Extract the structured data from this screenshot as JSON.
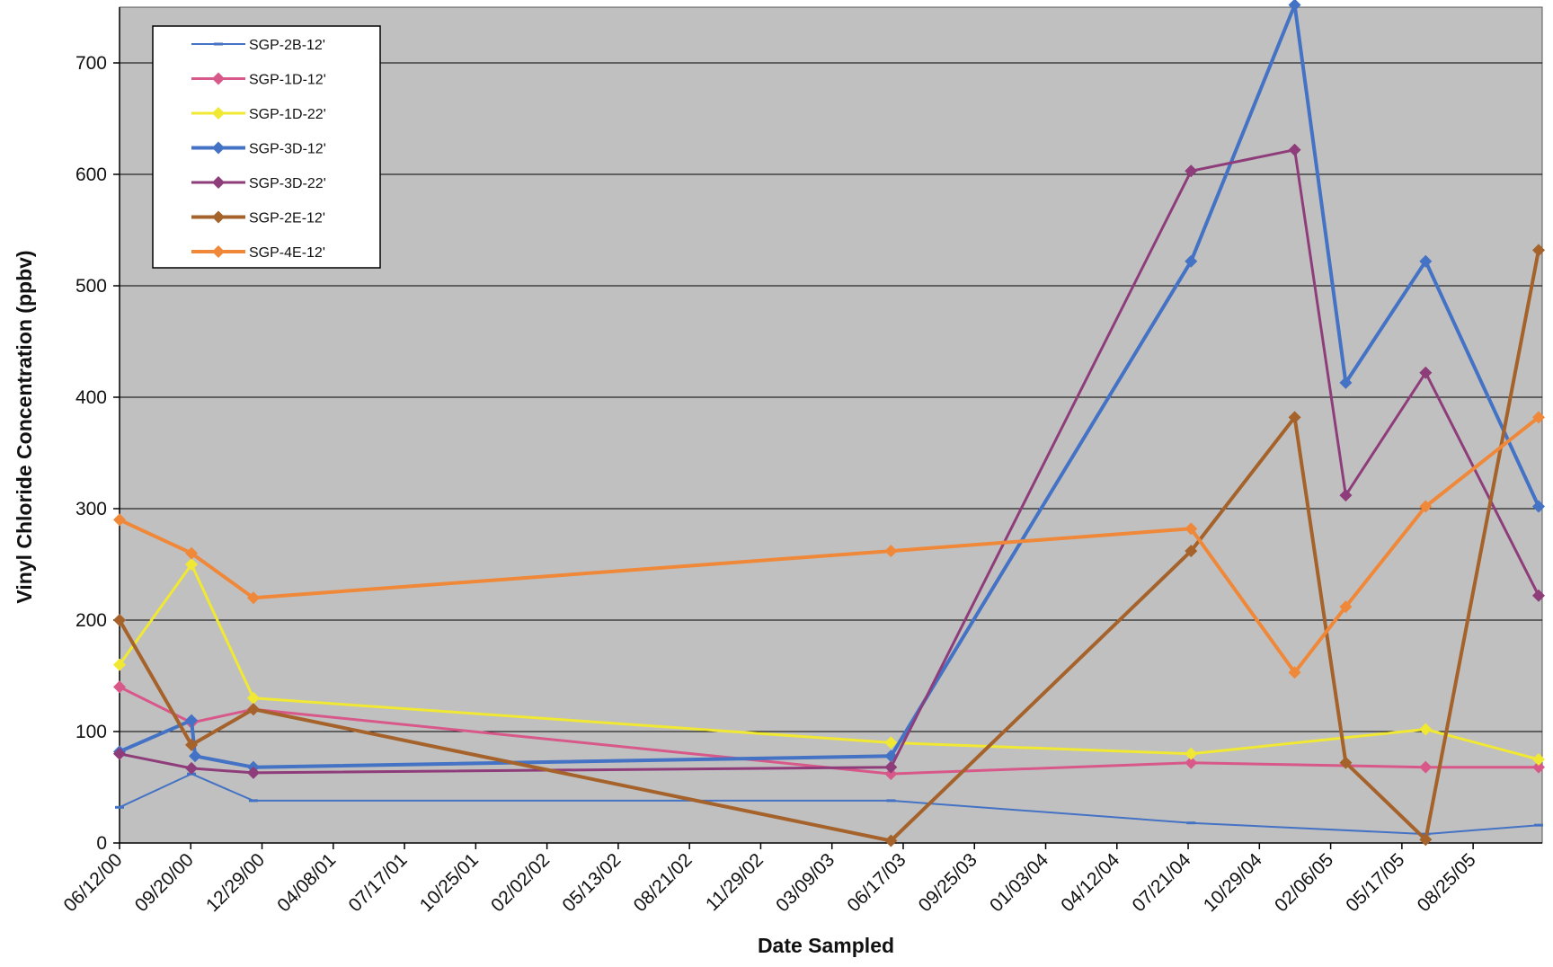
{
  "chart_data": {
    "type": "line",
    "title": "",
    "xlabel": "Date Sampled",
    "ylabel": "Vinyl Chloride Concentration (ppbv)",
    "ylim": [
      0,
      750
    ],
    "yticks": [
      0,
      100,
      200,
      300,
      400,
      500,
      600,
      700
    ],
    "x_tick_labels": [
      "06/12/00",
      "09/20/00",
      "12/29/00",
      "04/08/01",
      "07/17/01",
      "10/25/01",
      "02/02/02",
      "05/13/02",
      "08/21/02",
      "11/29/02",
      "03/09/03",
      "06/17/03",
      "09/25/03",
      "01/03/04",
      "04/12/04",
      "07/21/04",
      "10/29/04",
      "02/06/05",
      "05/17/05",
      "08/25/05"
    ],
    "xlim": [
      "2000-06-12",
      "2005-11-10"
    ],
    "grid": "horizontal",
    "background": "#c0c0c0",
    "legend_position": "top-left",
    "series": [
      {
        "name": "SGP-2B-12'",
        "color": "#4472c4",
        "width": 2,
        "marker": "dash",
        "points": [
          [
            "2000-06-12",
            32
          ],
          [
            "2000-09-20",
            62
          ],
          [
            "2000-12-15",
            38
          ],
          [
            "2003-05-20",
            38
          ],
          [
            "2004-07-10",
            18
          ],
          [
            "2005-06-01",
            8
          ],
          [
            "2005-11-05",
            16
          ]
        ]
      },
      {
        "name": "SGP-1D-12'",
        "color": "#d9588a",
        "width": 3,
        "marker": "diamond",
        "points": [
          [
            "2000-06-12",
            140
          ],
          [
            "2000-09-20",
            108
          ],
          [
            "2000-12-15",
            120
          ],
          [
            "2003-05-20",
            62
          ],
          [
            "2004-07-10",
            72
          ],
          [
            "2005-06-01",
            68
          ],
          [
            "2005-11-05",
            68
          ]
        ]
      },
      {
        "name": "SGP-1D-22'",
        "color": "#f0e832",
        "width": 3,
        "marker": "diamond",
        "points": [
          [
            "2000-06-12",
            160
          ],
          [
            "2000-09-20",
            250
          ],
          [
            "2000-12-15",
            130
          ],
          [
            "2003-05-20",
            90
          ],
          [
            "2004-07-10",
            80
          ],
          [
            "2005-06-01",
            102
          ],
          [
            "2005-11-05",
            75
          ]
        ]
      },
      {
        "name": "SGP-3D-12'",
        "color": "#4472c4",
        "width": 4,
        "marker": "diamond",
        "points": [
          [
            "2000-06-12",
            82
          ],
          [
            "2000-09-20",
            110
          ],
          [
            "2000-09-25",
            78
          ],
          [
            "2000-12-15",
            68
          ],
          [
            "2003-05-20",
            78
          ],
          [
            "2004-07-10",
            522
          ],
          [
            "2004-12-01",
            752
          ],
          [
            "2005-02-10",
            413
          ],
          [
            "2005-06-01",
            522
          ],
          [
            "2005-11-05",
            302
          ]
        ]
      },
      {
        "name": "SGP-3D-22'",
        "color": "#8e3d7a",
        "width": 3,
        "marker": "diamond",
        "points": [
          [
            "2000-06-12",
            80
          ],
          [
            "2000-09-20",
            67
          ],
          [
            "2000-12-15",
            63
          ],
          [
            "2003-05-20",
            68
          ],
          [
            "2004-07-10",
            603
          ],
          [
            "2004-12-01",
            622
          ],
          [
            "2005-02-10",
            312
          ],
          [
            "2005-06-01",
            422
          ],
          [
            "2005-11-05",
            222
          ]
        ]
      },
      {
        "name": "SGP-2E-12'",
        "color": "#a5622a",
        "width": 4,
        "marker": "diamond",
        "points": [
          [
            "2000-06-12",
            200
          ],
          [
            "2000-09-20",
            88
          ],
          [
            "2000-12-15",
            120
          ],
          [
            "2003-05-20",
            2
          ],
          [
            "2004-07-10",
            262
          ],
          [
            "2004-12-01",
            382
          ],
          [
            "2005-02-10",
            72
          ],
          [
            "2005-06-01",
            3
          ],
          [
            "2005-11-05",
            532
          ]
        ]
      },
      {
        "name": "SGP-4E-12'",
        "color": "#f0883a",
        "width": 4,
        "marker": "diamond",
        "points": [
          [
            "2000-06-12",
            290
          ],
          [
            "2000-09-20",
            260
          ],
          [
            "2000-12-15",
            220
          ],
          [
            "2003-05-20",
            262
          ],
          [
            "2004-07-10",
            282
          ],
          [
            "2004-12-01",
            153
          ],
          [
            "2005-02-10",
            212
          ],
          [
            "2005-06-01",
            302
          ],
          [
            "2005-11-05",
            382
          ]
        ]
      }
    ]
  }
}
